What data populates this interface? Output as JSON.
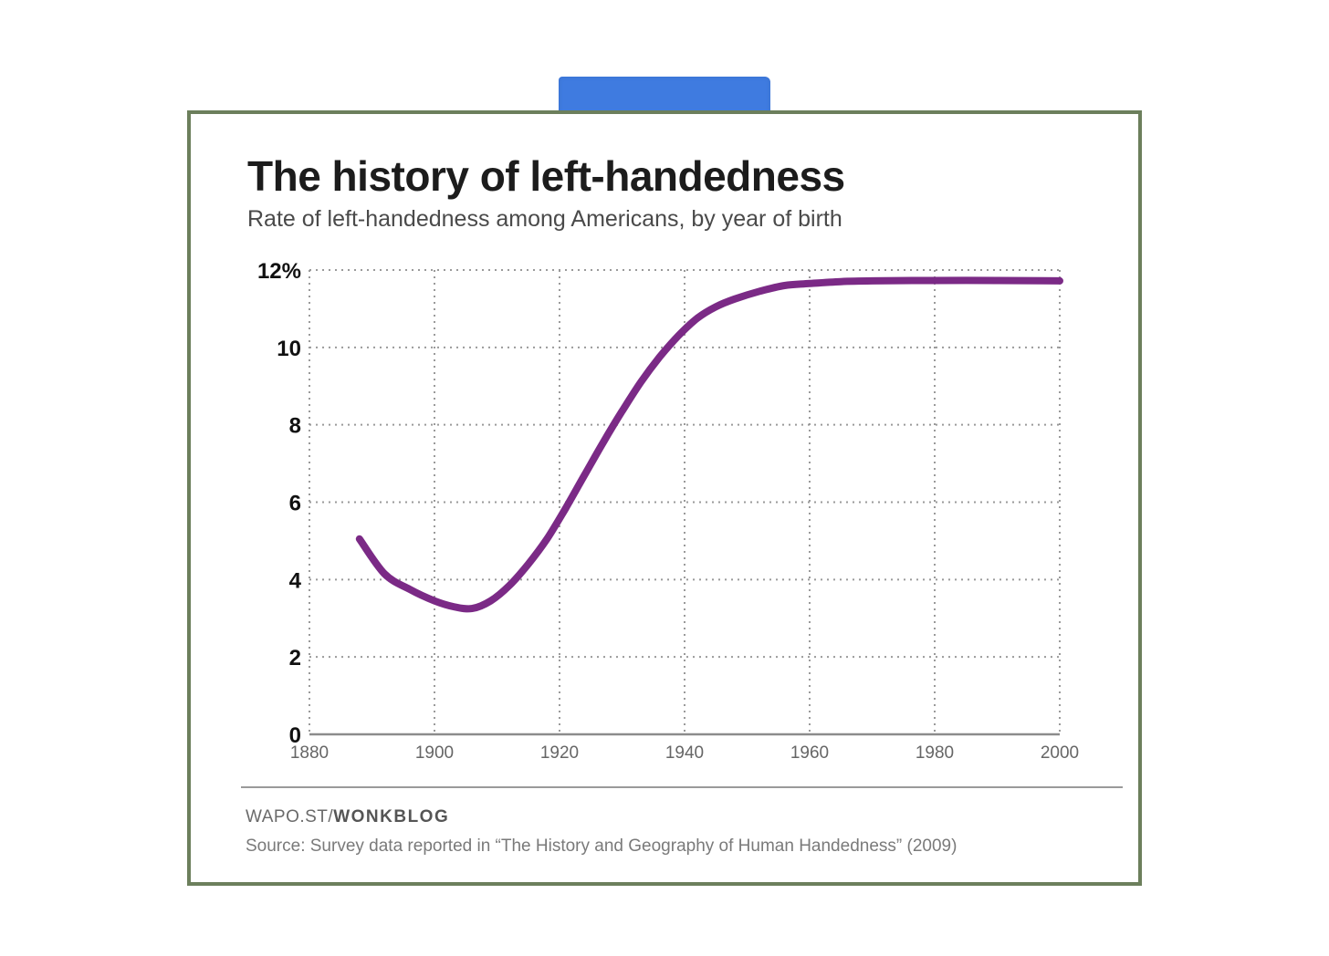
{
  "title": "The history of left-handedness",
  "subtitle": "Rate of left-handedness among Americans, by year of birth",
  "credit": {
    "prefix": "WAPO.ST/",
    "brand": "WONKBLOG"
  },
  "source": "Source: Survey data reported in “The History and Geography of Human Handedness” (2009)",
  "colors": {
    "line": "#7b2a86",
    "tape": "#3f7be0",
    "frame": "#6c7f5c"
  },
  "chart_data": {
    "type": "line",
    "title": "The history of left-handedness",
    "subtitle": "Rate of left-handedness among Americans, by year of birth",
    "xlabel": "",
    "ylabel": "",
    "xlim": [
      1880,
      2000
    ],
    "ylim": [
      0,
      12
    ],
    "x_ticks": [
      1880,
      1900,
      1920,
      1940,
      1960,
      1980,
      2000
    ],
    "y_ticks": [
      0,
      2,
      4,
      6,
      8,
      10,
      12
    ],
    "y_tick_labels": [
      "0",
      "2",
      "4",
      "6",
      "8",
      "10",
      "12%"
    ],
    "grid": true,
    "series": [
      {
        "x": [
          1888,
          1892,
          1896,
          1900,
          1903,
          1906,
          1909,
          1912,
          1915,
          1918,
          1921,
          1924,
          1927,
          1930,
          1933,
          1936,
          1939,
          1942,
          1945,
          1948,
          1952,
          1956,
          1960,
          1965,
          1970,
          1980,
          1990,
          2000
        ],
        "y": [
          5.05,
          4.15,
          3.75,
          3.45,
          3.3,
          3.25,
          3.45,
          3.85,
          4.4,
          5.05,
          5.85,
          6.7,
          7.55,
          8.35,
          9.1,
          9.75,
          10.3,
          10.75,
          11.05,
          11.25,
          11.45,
          11.6,
          11.65,
          11.7,
          11.72,
          11.73,
          11.73,
          11.72
        ]
      }
    ]
  }
}
